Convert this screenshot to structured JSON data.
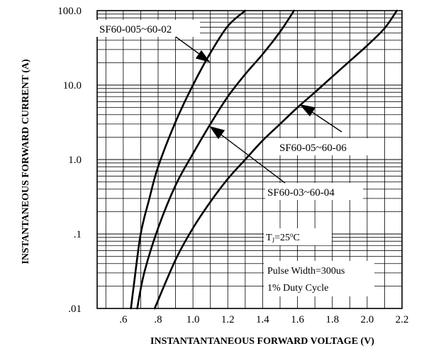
{
  "chart_data": {
    "type": "line",
    "xlabel": "INSTANTANTANEOUS FORWARD VOLTAGE (V)",
    "ylabel": "INSTANTANEOUS FORWARD CURRENT (A)",
    "xlim": [
      0.45,
      2.2
    ],
    "ylim": [
      0.01,
      100
    ],
    "y_scale": "log",
    "grid": true,
    "x_ticks": [
      ".6",
      ".8",
      "1.0",
      "1.2",
      "1.4",
      "1.6",
      "1.8",
      "2.0",
      "2.2"
    ],
    "y_ticks": [
      ".01",
      ".1",
      "1.0",
      "10.0",
      "100.0"
    ],
    "series": [
      {
        "name": "SF60-005~60-02",
        "points": [
          [
            0.644,
            0.01
          ],
          [
            0.66,
            0.02
          ],
          [
            0.7,
            0.1
          ],
          [
            0.75,
            0.3
          ],
          [
            0.8,
            0.8
          ],
          [
            0.9,
            3.2
          ],
          [
            1.0,
            10
          ],
          [
            1.1,
            27
          ],
          [
            1.2,
            62
          ],
          [
            1.3,
            100
          ]
        ]
      },
      {
        "name": "SF60-03~60-04",
        "points": [
          [
            0.68,
            0.01
          ],
          [
            0.72,
            0.03
          ],
          [
            0.8,
            0.12
          ],
          [
            0.9,
            0.45
          ],
          [
            1.0,
            1.2
          ],
          [
            1.1,
            3.0
          ],
          [
            1.2,
            7.0
          ],
          [
            1.3,
            14
          ],
          [
            1.4,
            26
          ],
          [
            1.5,
            52
          ],
          [
            1.58,
            100
          ]
        ]
      },
      {
        "name": "SF60-05~60-06",
        "points": [
          [
            0.78,
            0.01
          ],
          [
            0.9,
            0.045
          ],
          [
            1.0,
            0.12
          ],
          [
            1.1,
            0.27
          ],
          [
            1.2,
            0.55
          ],
          [
            1.3,
            1.0
          ],
          [
            1.4,
            1.8
          ],
          [
            1.5,
            3.0
          ],
          [
            1.6,
            5.0
          ],
          [
            1.7,
            8.0
          ],
          [
            1.8,
            13
          ],
          [
            1.9,
            21
          ],
          [
            2.0,
            34
          ],
          [
            2.1,
            58
          ],
          [
            2.17,
            100
          ]
        ]
      }
    ],
    "annotations": [
      {
        "text": "SF60-005~60-02",
        "target_series": 0
      },
      {
        "text": "SF60-03~60-04",
        "target_series": 1
      },
      {
        "text": "SF60-05~60-06",
        "target_series": 2
      },
      {
        "text": "TJ=25°C"
      },
      {
        "text": "Pulse Width=300us"
      },
      {
        "text": "1% Duty Cycle"
      }
    ]
  }
}
